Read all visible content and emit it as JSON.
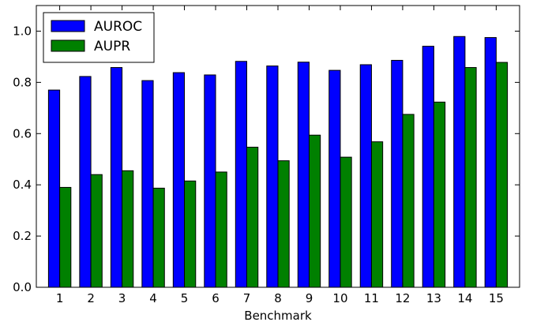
{
  "chart_data": {
    "type": "bar",
    "xlabel": "Benchmark",
    "ylabel": "",
    "ylim": [
      0.0,
      1.1
    ],
    "yticks": [
      "0.0",
      "0.2",
      "0.4",
      "0.6",
      "0.8",
      "1.0"
    ],
    "categories": [
      "1",
      "2",
      "3",
      "4",
      "5",
      "6",
      "7",
      "8",
      "9",
      "10",
      "11",
      "12",
      "13",
      "14",
      "15"
    ],
    "series": [
      {
        "name": "AUROC",
        "color": "#0000ff",
        "values": [
          0.77,
          0.823,
          0.858,
          0.807,
          0.838,
          0.829,
          0.882,
          0.864,
          0.879,
          0.847,
          0.869,
          0.886,
          0.941,
          0.979,
          0.975
        ]
      },
      {
        "name": "AUPR",
        "color": "#008000",
        "values": [
          0.39,
          0.44,
          0.455,
          0.387,
          0.415,
          0.45,
          0.547,
          0.494,
          0.594,
          0.508,
          0.568,
          0.675,
          0.723,
          0.858,
          0.878
        ]
      }
    ],
    "legend": {
      "position": "top-left"
    },
    "grid": false
  }
}
